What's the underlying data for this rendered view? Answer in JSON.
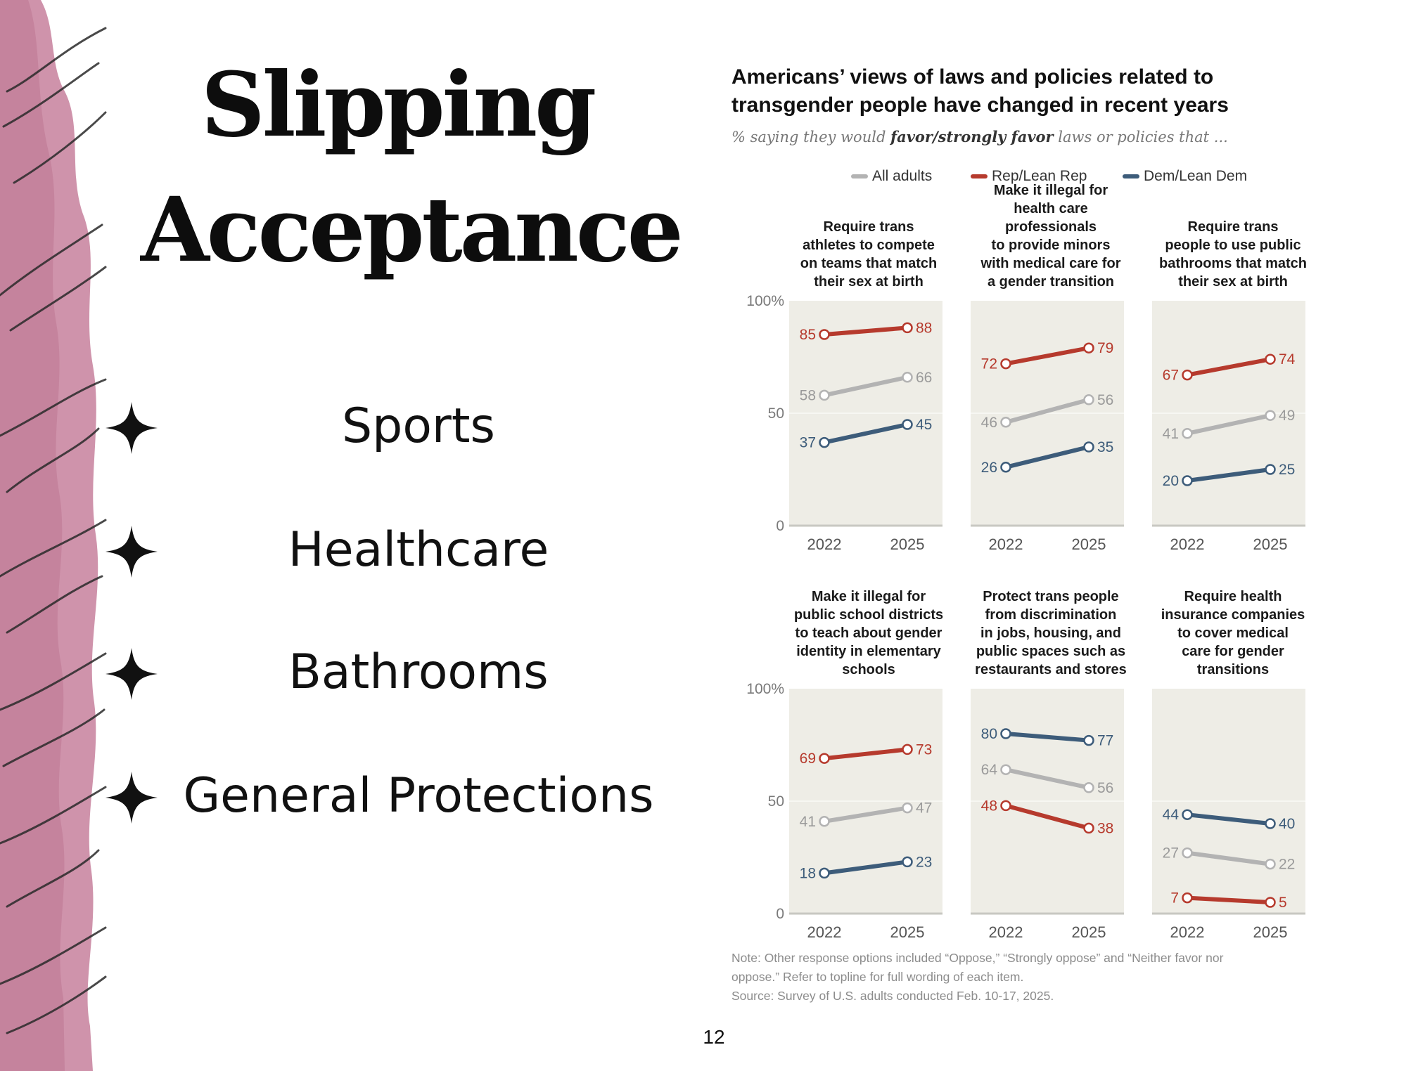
{
  "slide": {
    "title_line1": "Slipping",
    "title_line2": "Acceptance",
    "bullets": [
      "Sports",
      "Healthcare",
      "Bathrooms",
      "General Protections"
    ],
    "page_number": "12",
    "accent_color": "#c98aa3"
  },
  "chart": {
    "title_line1": "Americans’ views of laws and policies related to",
    "title_line2": "transgender people have changed in recent years",
    "subtitle_prefix": "% saying they would ",
    "subtitle_bold": "favor/strongly favor",
    "subtitle_suffix": " laws or policies that ...",
    "legend": [
      {
        "label": "All adults",
        "color": "#b3b3b3"
      },
      {
        "label": "Rep/Lean Rep",
        "color": "#b63a2d"
      },
      {
        "label": "Dem/Lean Dem",
        "color": "#3d5c7a"
      }
    ],
    "note_line1": "Note: Other response options included “Oppose,” “Strongly oppose” and “Neither favor nor",
    "note_line2": "oppose.” Refer to topline for full wording of each item.",
    "source": "Source: Survey of U.S. adults conducted Feb. 10-17, 2025."
  },
  "chart_data": {
    "type": "line",
    "x": [
      "2022",
      "2025"
    ],
    "ylim": [
      0,
      100
    ],
    "yticks": [
      "100%",
      "50",
      "0"
    ],
    "series_names": [
      "All adults",
      "Rep/Lean Rep",
      "Dem/Lean Dem"
    ],
    "panels": [
      {
        "title": [
          "Require trans",
          "athletes to compete",
          "on teams that match",
          "their sex at birth"
        ],
        "series": [
          {
            "name": "All adults",
            "values": [
              58,
              66
            ]
          },
          {
            "name": "Rep/Lean Rep",
            "values": [
              85,
              88
            ]
          },
          {
            "name": "Dem/Lean Dem",
            "values": [
              37,
              45
            ]
          }
        ]
      },
      {
        "title": [
          "Make it illegal for",
          "health care professionals",
          "to provide minors",
          "with medical care for",
          "a gender transition"
        ],
        "series": [
          {
            "name": "All adults",
            "values": [
              46,
              56
            ]
          },
          {
            "name": "Rep/Lean Rep",
            "values": [
              72,
              79
            ]
          },
          {
            "name": "Dem/Lean Dem",
            "values": [
              26,
              35
            ]
          }
        ]
      },
      {
        "title": [
          "Require trans",
          "people to use public",
          "bathrooms that match",
          "their sex at birth"
        ],
        "series": [
          {
            "name": "All adults",
            "values": [
              41,
              49
            ]
          },
          {
            "name": "Rep/Lean Rep",
            "values": [
              67,
              74
            ]
          },
          {
            "name": "Dem/Lean Dem",
            "values": [
              20,
              25
            ]
          }
        ]
      },
      {
        "title": [
          "Make it illegal for",
          "public school districts",
          "to teach about gender",
          "identity in elementary",
          "schools"
        ],
        "series": [
          {
            "name": "All adults",
            "values": [
              41,
              47
            ]
          },
          {
            "name": "Rep/Lean Rep",
            "values": [
              69,
              73
            ]
          },
          {
            "name": "Dem/Lean Dem",
            "values": [
              18,
              23
            ]
          }
        ]
      },
      {
        "title": [
          "Protect trans people",
          "from discrimination",
          "in jobs, housing, and",
          "public spaces such as",
          "restaurants and stores"
        ],
        "series": [
          {
            "name": "All adults",
            "values": [
              64,
              56
            ]
          },
          {
            "name": "Rep/Lean Rep",
            "values": [
              48,
              38
            ]
          },
          {
            "name": "Dem/Lean Dem",
            "values": [
              80,
              77
            ]
          }
        ]
      },
      {
        "title": [
          "Require health",
          "insurance companies",
          "to cover medical",
          "care for gender",
          "transitions"
        ],
        "series": [
          {
            "name": "All adults",
            "values": [
              27,
              22
            ]
          },
          {
            "name": "Rep/Lean Rep",
            "values": [
              7,
              5
            ]
          },
          {
            "name": "Dem/Lean Dem",
            "values": [
              44,
              40
            ]
          }
        ]
      }
    ]
  }
}
